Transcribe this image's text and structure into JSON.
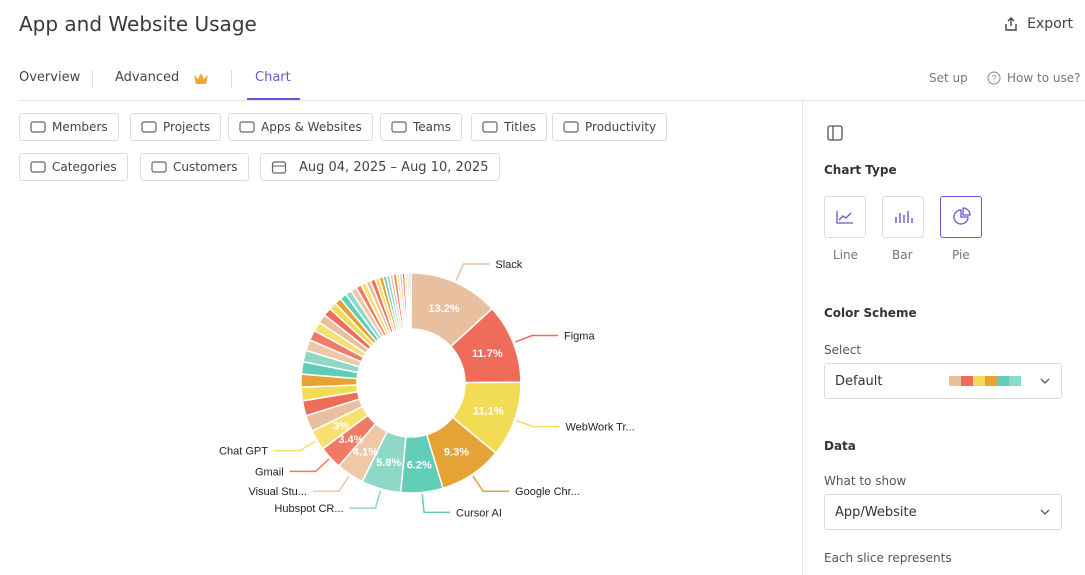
{
  "header": {
    "title": "App and Website Usage",
    "export": "Export"
  },
  "tabs": [
    "Overview",
    "Advanced",
    "Chart"
  ],
  "top_links": [
    "Set up",
    "How to use?"
  ],
  "filters": [
    "Members",
    "Projects",
    "Apps & Websites",
    "Teams",
    "Titles",
    "Productivity",
    "Categories",
    "Customers"
  ],
  "date_range": "Aug 04, 2025 – Aug 10, 2025",
  "chart_data": {
    "type": "pie",
    "categories": [
      "Slack",
      "Figma",
      "WebWork Tr...",
      "Google Chr...",
      "Cursor AI",
      "Hubspot CR...",
      "Visual Stu...",
      "Gmail",
      "Chat GPT",
      null,
      null,
      null,
      null,
      null,
      null,
      null,
      null,
      null,
      null,
      null,
      null,
      null,
      null,
      null,
      null,
      null,
      null,
      null,
      null,
      null,
      null,
      null,
      null,
      null,
      null,
      null,
      null,
      null,
      null,
      null,
      null
    ],
    "values": [
      13.2,
      11.7,
      11.1,
      9.3,
      6.2,
      5.8,
      4.1,
      3.4,
      3,
      2.4,
      2.2,
      2,
      1.9,
      1.8,
      1.7,
      1.6,
      1.5,
      1.4,
      1.3,
      1.2,
      1.1,
      1,
      1,
      0.9,
      0.9,
      0.8,
      0.8,
      0.7,
      0.7,
      0.6,
      0.6,
      0.5,
      0.5,
      0.5,
      0.5,
      0.4,
      0.4,
      0.4,
      0.3,
      0.3,
      0.3
    ],
    "value_labels": [
      "13.2%",
      "11.7%",
      "11.1%",
      "9.3%",
      "6.2%",
      "5.8%",
      "4.1%",
      "3.4%",
      "3%",
      null,
      null,
      null,
      null,
      null,
      null,
      null,
      null,
      null,
      null,
      null,
      null,
      null,
      null,
      null,
      null,
      null,
      null,
      null,
      null,
      null,
      null,
      null,
      null,
      null,
      null,
      null,
      null,
      null,
      null,
      null,
      null
    ],
    "colors": [
      "#e8bf9f",
      "#ef6b5a",
      "#f3dc55",
      "#e5a235",
      "#5fcdb8",
      "#8ed8c8",
      "#efc8a8",
      "#f07a65",
      "#f5e070"
    ]
  },
  "panel": {
    "chart_type_heading": "Chart Type",
    "chart_types": [
      "Line",
      "Bar",
      "Pie"
    ],
    "color_scheme_heading": "Color Scheme",
    "select_label": "Select",
    "select_value": "Default",
    "data_heading": "Data",
    "what_to_show_label": "What to show",
    "what_to_show_value": "App/Website",
    "each_slice_label": "Each slice represents"
  }
}
